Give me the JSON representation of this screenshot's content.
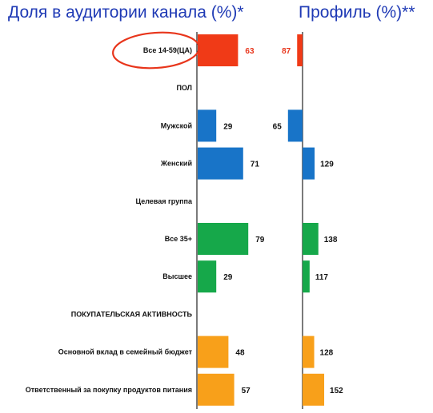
{
  "titles": {
    "left": "Доля в аудитории канала (%)*",
    "right": "Профиль (%)**"
  },
  "chart_data": {
    "type": "bar",
    "orientation": "horizontal",
    "rows": [
      {
        "label": "Все 14-59(ЦА)",
        "share": 63,
        "profile": 87,
        "color": "#f03a17",
        "highlight": true
      },
      {
        "label": "ПОЛ",
        "header": true
      },
      {
        "label": "Мужской",
        "share": 29,
        "profile": 65,
        "color": "#1874c8"
      },
      {
        "label": "Женский",
        "share": 71,
        "profile": 129,
        "color": "#1874c8"
      },
      {
        "label": "Целевая группа",
        "header": true
      },
      {
        "label": "Все 35+",
        "share": 79,
        "profile": 138,
        "color": "#16a84a"
      },
      {
        "label": "Высшее",
        "share": 29,
        "profile": 117,
        "color": "#16a84a"
      },
      {
        "label": "ПОКУПАТЕЛЬСКАЯ АКТИВНОСТЬ",
        "header": true
      },
      {
        "label": "Основной вклад в семейный бюджет",
        "share": 48,
        "profile": 128,
        "color": "#f8a01a"
      },
      {
        "label": "Ответственный за покупку продуктов питания",
        "share": 57,
        "profile": 152,
        "color": "#f8a01a"
      }
    ],
    "profile_baseline": 100,
    "highlight_color": "#e8351b"
  }
}
